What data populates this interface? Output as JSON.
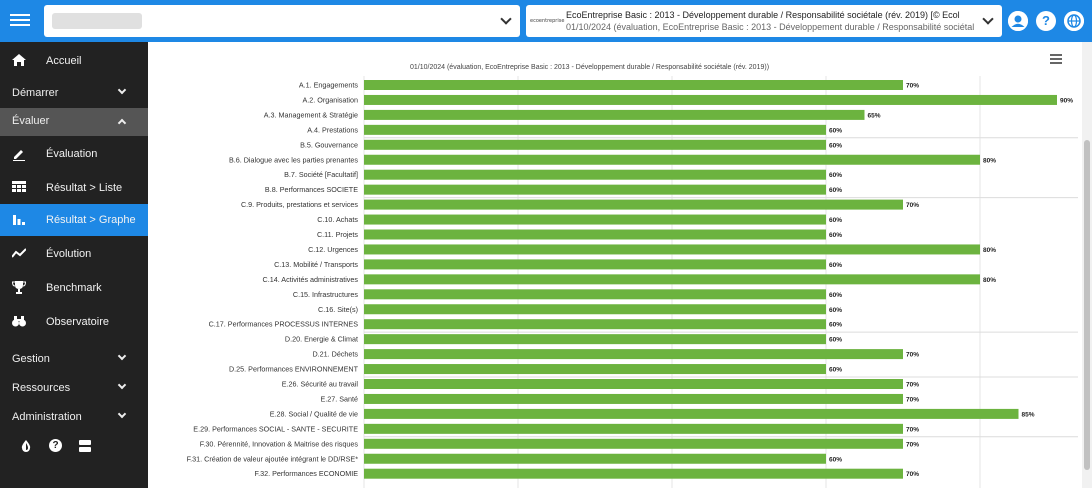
{
  "header": {
    "org_select_value": "",
    "evaluation_line1": "EcoEntreprise Basic : 2013 - Développement durable / Responsabilité sociétale (rév. 2019) [© Ecol",
    "evaluation_line2": "01/10/2024 (évaluation, EcoEntreprise Basic : 2013 - Développement durable / Responsabilité sociétal",
    "logo_text": "ecoentreprise",
    "user_icon": "user-circle-icon",
    "help_icon": "question-circle-icon",
    "language_icon": "globe-icon"
  },
  "sidebar": {
    "accueil": "Accueil",
    "demarrer": "Démarrer",
    "evaluer": "Évaluer",
    "evaluation": "Évaluation",
    "resultat_liste": "Résultat > Liste",
    "resultat_graphe": "Résultat > Graphe",
    "evolution": "Évolution",
    "benchmark": "Benchmark",
    "observatoire": "Observatoire",
    "gestion": "Gestion",
    "ressources": "Ressources",
    "administration": "Administration"
  },
  "colors": {
    "accent": "#1e88e5",
    "bar": "#6cb33f",
    "sidebar": "#222222"
  },
  "chart_data": {
    "type": "bar",
    "orientation": "horizontal",
    "title": "01/10/2024 (évaluation, EcoEntreprise Basic : 2013 - Développement durable / Responsabilité sociétale (rév. 2019))",
    "categories": [
      "A.1. Engagements",
      "A.2. Organisation",
      "A.3. Management & Stratégie",
      "A.4. Prestations",
      "B.5. Gouvernance",
      "B.6. Dialogue avec les parties prenantes",
      "B.7. Société [Facultatif]",
      "B.8. Performances SOCIETE",
      "C.9. Produits, prestations et services",
      "C.10. Achats",
      "C.11. Projets",
      "C.12. Urgences",
      "C.13. Mobilité / Transports",
      "C.14. Activités administratives",
      "C.15. Infrastructures",
      "C.16. Site(s)",
      "C.17. Performances PROCESSUS INTERNES",
      "D.20. Energie & Climat",
      "D.21. Déchets",
      "D.25. Performances ENVIRONNEMENT",
      "E.26. Sécurité au travail",
      "E.27. Santé",
      "E.28. Social / Qualité de vie",
      "E.29. Performances SOCIAL - SANTE - SECURITE",
      "F.30. Pérennité, Innovation & Maitrise des risques",
      "F.31. Création de valeur ajoutée intégrant le DD/RSE*",
      "F.32. Performances ECONOMIE"
    ],
    "values": [
      70,
      90,
      65,
      60,
      60,
      80,
      60,
      60,
      70,
      60,
      60,
      80,
      60,
      80,
      60,
      60,
      60,
      60,
      70,
      60,
      70,
      70,
      85,
      70,
      70,
      60,
      70
    ],
    "value_labels": [
      "70%",
      "90%",
      "65%",
      "60%",
      "60%",
      "80%",
      "60%",
      "60%",
      "70%",
      "60%",
      "60%",
      "80%",
      "60%",
      "80%",
      "60%",
      "60%",
      "60%",
      "60%",
      "70%",
      "60%",
      "70%",
      "70%",
      "85%",
      "70%",
      "70%",
      "60%",
      "70%"
    ],
    "group_ends": [
      3,
      7,
      16,
      19,
      23
    ],
    "xlim": [
      0,
      100
    ],
    "grid": true
  }
}
